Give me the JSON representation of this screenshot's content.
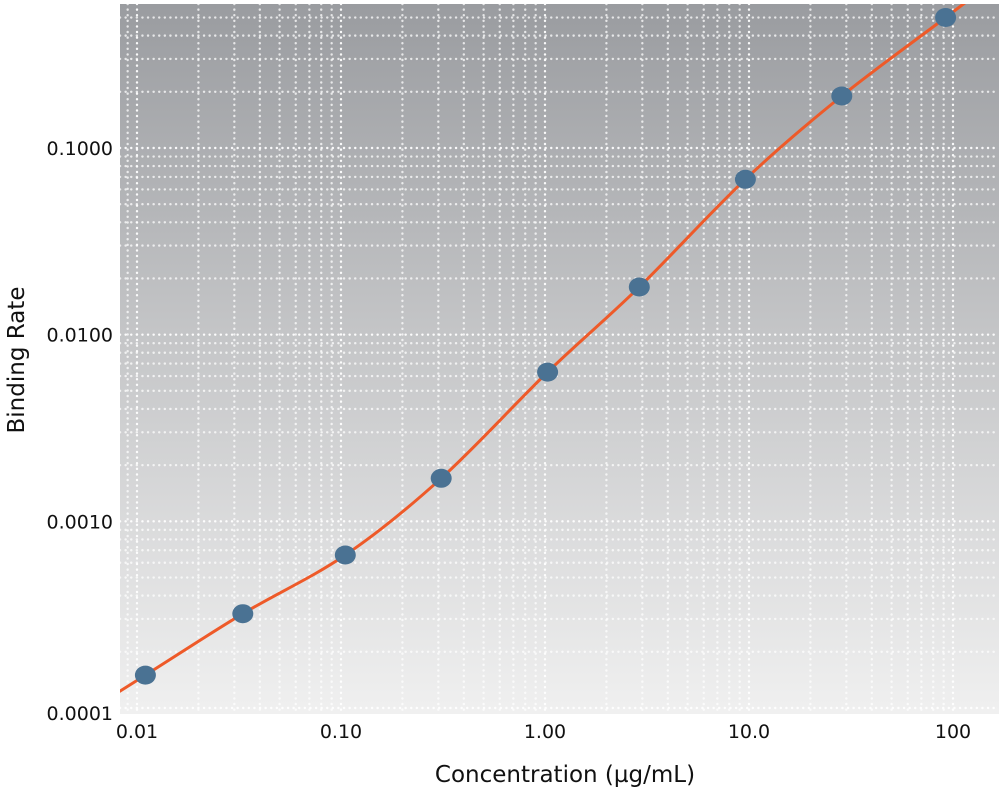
{
  "chart_data": {
    "type": "scatter",
    "title": "",
    "xlabel": "Concentration (µg/mL)",
    "ylabel": "Binding Rate",
    "x_scale": "log",
    "y_scale": "log",
    "xlim": [
      0.01,
      120
    ],
    "ylim": [
      0.0001,
      0.8
    ],
    "x_ticks": [
      {
        "value": 0.01,
        "label": "0.01"
      },
      {
        "value": 0.1,
        "label": "0.10"
      },
      {
        "value": 1,
        "label": "1.00"
      },
      {
        "value": 10,
        "label": "10.0"
      },
      {
        "value": 100,
        "label": "100"
      }
    ],
    "y_ticks": [
      {
        "value": 0.0001,
        "label": "0.0001"
      },
      {
        "value": 0.001,
        "label": "0.0010"
      },
      {
        "value": 0.01,
        "label": "0.0100"
      },
      {
        "value": 0.1,
        "label": "0.1000"
      }
    ],
    "grid": true,
    "legend": "none",
    "series": [
      {
        "points": [
          {
            "x": 0.011,
            "y": 0.00015
          },
          {
            "x": 0.033,
            "y": 0.00032
          },
          {
            "x": 0.105,
            "y": 0.00066
          },
          {
            "x": 0.31,
            "y": 0.0017
          },
          {
            "x": 1.03,
            "y": 0.0063
          },
          {
            "x": 2.9,
            "y": 0.018
          },
          {
            "x": 9.6,
            "y": 0.068
          },
          {
            "x": 28.5,
            "y": 0.19
          },
          {
            "x": 92,
            "y": 0.5
          }
        ],
        "marker_color": "#4a7293",
        "line_color": "#ee5a29"
      }
    ]
  }
}
